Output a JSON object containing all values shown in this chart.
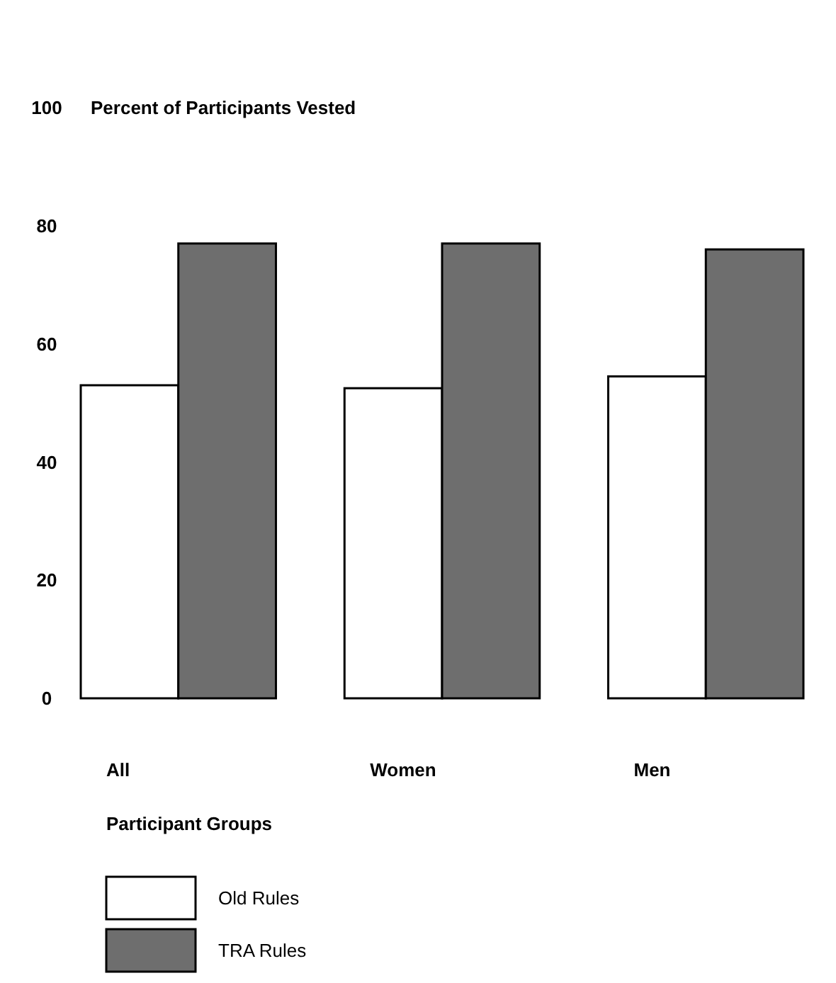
{
  "chart_data": {
    "type": "bar",
    "ylabel": "Percent of Participants Vested",
    "xlabel": "Participant Groups",
    "categories": [
      "All",
      "Women",
      "Men"
    ],
    "series": [
      {
        "name": "Old Rules",
        "color": "#ffffff",
        "values": [
          53,
          52.5,
          54.5
        ]
      },
      {
        "name": "TRA Rules",
        "color": "#6e6e6e",
        "values": [
          77,
          77,
          76
        ]
      }
    ],
    "ylim": [
      0,
      100
    ],
    "yticks": [
      0,
      20,
      40,
      60,
      80,
      100
    ],
    "grid": false,
    "legend": "bottom"
  }
}
